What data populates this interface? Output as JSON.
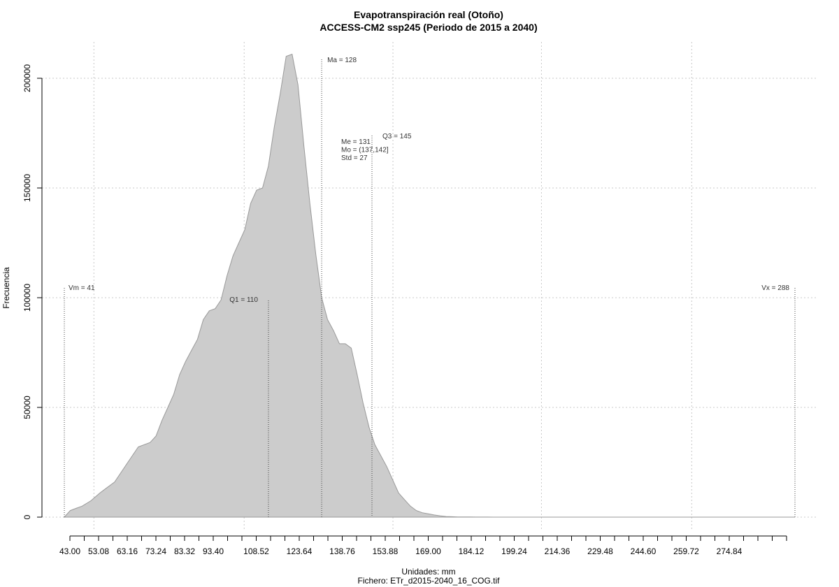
{
  "chart_data": {
    "type": "area",
    "title": "Evapotranspiración real (Otoño)",
    "subtitle": "ACCESS-CM2 ssp245 (Periodo de 2015 a 2040)",
    "xlabel": "Unidades: mm",
    "ylabel": "Frecuencia",
    "caption": "Fichero: ETr_d2015-2040_16_COG.tif",
    "x_tick_labels": [
      "43.00",
      "53.08",
      "63.16",
      "73.24",
      "83.32",
      "93.40",
      "108.52",
      "123.64",
      "138.76",
      "153.88",
      "169.00",
      "184.12",
      "199.24",
      "214.36",
      "229.48",
      "244.60",
      "259.72",
      "274.84"
    ],
    "y_tick_labels": [
      "0",
      "50000",
      "100000",
      "150000",
      "200000"
    ],
    "y_ticks": [
      0,
      50000,
      100000,
      150000,
      200000
    ],
    "xlim": [
      43,
      288
    ],
    "ylim": [
      0,
      200000
    ],
    "grid": true,
    "fill_color": "#cccccc",
    "line_color": "#999999",
    "x_grid_values": [
      51.0,
      101.8,
      152.1,
      202.3,
      253.1
    ],
    "x": [
      41,
      43,
      45,
      47,
      50,
      53,
      55,
      58,
      62,
      66,
      70,
      72,
      74,
      76,
      78,
      80,
      82,
      84,
      86,
      88,
      90,
      92,
      94,
      96,
      98,
      100,
      102,
      104,
      106,
      108,
      110,
      112,
      114,
      116,
      118,
      120,
      122,
      124,
      126,
      128,
      130,
      132,
      134,
      136,
      138,
      140,
      142,
      144,
      146,
      148,
      150,
      152,
      154,
      156,
      158,
      160,
      162,
      164,
      166,
      168,
      170,
      172,
      174,
      176,
      178,
      180,
      182,
      184,
      186,
      188,
      190,
      192,
      195,
      198,
      202,
      206,
      210,
      215,
      220,
      230,
      250,
      270,
      288
    ],
    "values": [
      0,
      3000,
      4000,
      5000,
      7500,
      11000,
      13000,
      16000,
      24000,
      32000,
      34000,
      37000,
      44000,
      50000,
      56000,
      65000,
      71000,
      76000,
      81000,
      90000,
      94000,
      95000,
      99000,
      110000,
      119000,
      125000,
      131000,
      143000,
      149000,
      150000,
      160000,
      178000,
      193000,
      210000,
      211000,
      197000,
      169000,
      143000,
      120000,
      100000,
      90000,
      85000,
      79000,
      79000,
      77000,
      65000,
      52000,
      41000,
      33000,
      28000,
      23000,
      17000,
      11000,
      8000,
      5000,
      3000,
      2000,
      1500,
      1000,
      600,
      300,
      200,
      100,
      80,
      60,
      40,
      30,
      20,
      10,
      5,
      3,
      2,
      1,
      1,
      0,
      0,
      0,
      0,
      0,
      0,
      0,
      0,
      0
    ],
    "vertical_markers": [
      {
        "label": "Vm = 41",
        "x": 41
      },
      {
        "label": "Q1 = 110",
        "x": 110
      },
      {
        "label": "Ma = 128",
        "x": 128
      },
      {
        "label": "Q3 = 145",
        "x": 145
      },
      {
        "label": "Vx = 288",
        "x": 288
      }
    ],
    "stats": [
      "Me = 131",
      "Mo = (137,142]",
      "Std = 27"
    ]
  }
}
